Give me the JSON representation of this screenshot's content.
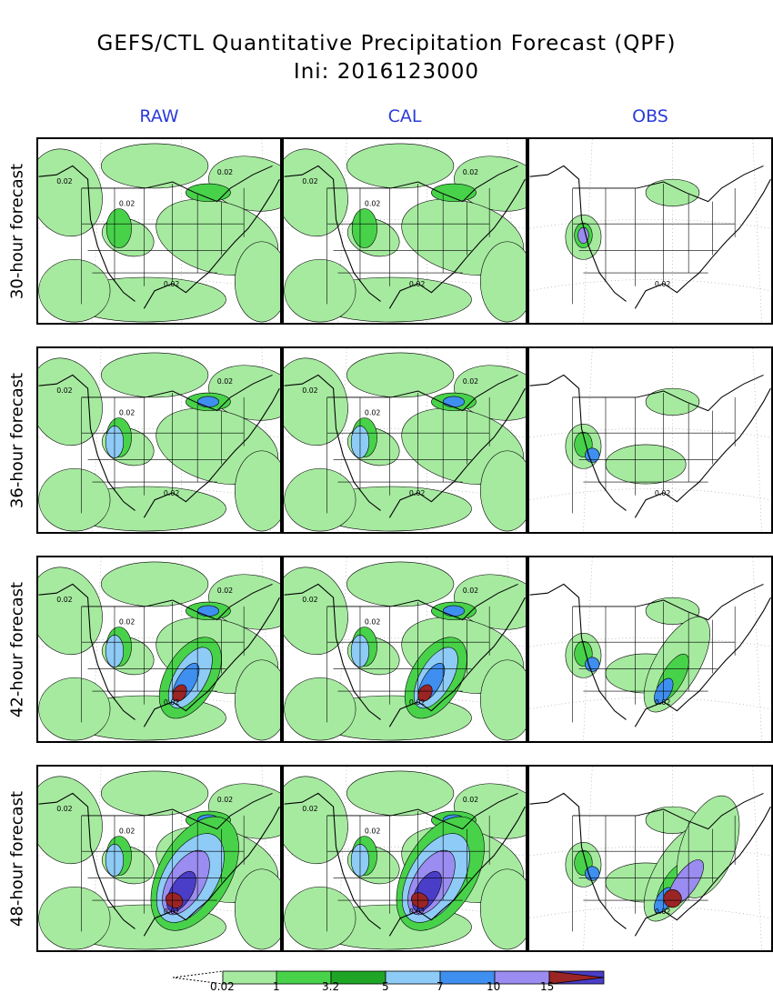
{
  "title": "GEFS/CTL Quantitative Precipitation Forecast (QPF)",
  "subtitle": "Ini: 2016123000",
  "columns": [
    "RAW",
    "CAL",
    "OBS"
  ],
  "rows": [
    {
      "label": "30-hour forecast",
      "level": 1
    },
    {
      "label": "36-hour forecast",
      "level": 2
    },
    {
      "label": "42-hour forecast",
      "level": 3
    },
    {
      "label": "48-hour forecast",
      "level": 4
    }
  ],
  "contour_label": "0.02",
  "legend": {
    "labels": [
      "0.02",
      "1",
      "3.2",
      "5",
      "7",
      "10",
      "15"
    ],
    "colors": [
      "#a6eaa0",
      "#48d24a",
      "#1fa525",
      "#8ecbf6",
      "#3f8ff0",
      "#9a8cf0",
      "#4a3ec8",
      "#9b2424"
    ]
  },
  "colors": {
    "header": "#2b3bd9",
    "light_green": "#a6eaa0",
    "green": "#48d24a",
    "dark_green": "#1fa525",
    "light_blue": "#8ecbf6",
    "blue": "#3f8ff0",
    "purple": "#9a8cf0",
    "indigo": "#4a3ec8",
    "dark_red": "#9b2424"
  }
}
